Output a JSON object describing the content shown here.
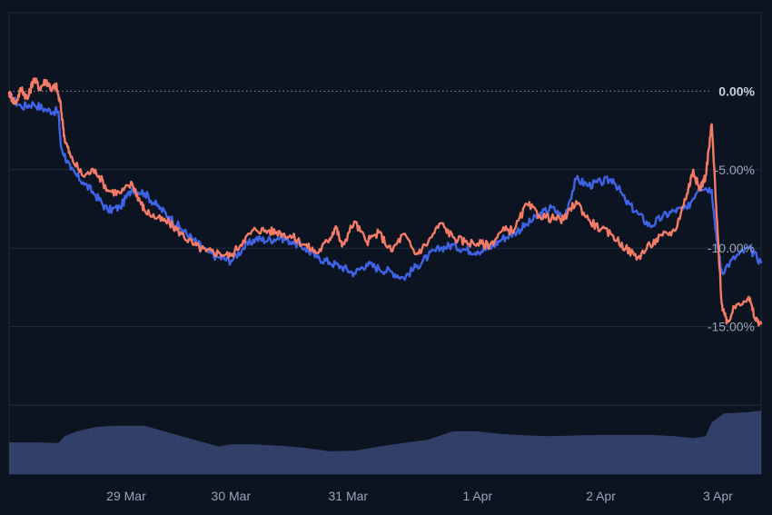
{
  "chart_data": {
    "type": "line",
    "title": "",
    "xlabel": "",
    "ylabel": "",
    "x_unit": "days",
    "xlim": [
      0,
      6.1
    ],
    "ylim": [
      -20,
      5
    ],
    "y_ticks": [
      {
        "value": 0,
        "label": "0.00%"
      },
      {
        "value": -5,
        "label": "-5.00%"
      },
      {
        "value": -10,
        "label": "-10.00%"
      },
      {
        "value": -15,
        "label": "-15.00%"
      }
    ],
    "x_ticks": [
      {
        "value": 0.95,
        "label": "29 Mar"
      },
      {
        "value": 1.8,
        "label": "30 Mar"
      },
      {
        "value": 2.75,
        "label": "31 Mar"
      },
      {
        "value": 3.8,
        "label": "1 Apr"
      },
      {
        "value": 4.8,
        "label": "2 Apr"
      },
      {
        "value": 5.75,
        "label": "3 Apr"
      }
    ],
    "baseline": 0,
    "grid": "horizontal",
    "legend": "none",
    "series": [
      {
        "color": "#3f63e6",
        "points": [
          [
            0.0,
            -0.3
          ],
          [
            0.1,
            -1.0
          ],
          [
            0.2,
            -0.8
          ],
          [
            0.3,
            -1.2
          ],
          [
            0.4,
            -1.3
          ],
          [
            0.42,
            -3.5
          ],
          [
            0.5,
            -5.0
          ],
          [
            0.6,
            -5.8
          ],
          [
            0.7,
            -6.6
          ],
          [
            0.8,
            -7.6
          ],
          [
            0.9,
            -7.4
          ],
          [
            1.0,
            -6.2
          ],
          [
            1.1,
            -6.5
          ],
          [
            1.2,
            -7.3
          ],
          [
            1.3,
            -8.0
          ],
          [
            1.4,
            -8.8
          ],
          [
            1.5,
            -9.5
          ],
          [
            1.6,
            -10.2
          ],
          [
            1.7,
            -10.6
          ],
          [
            1.8,
            -10.8
          ],
          [
            1.9,
            -10.0
          ],
          [
            2.0,
            -9.4
          ],
          [
            2.1,
            -9.5
          ],
          [
            2.2,
            -9.3
          ],
          [
            2.3,
            -9.6
          ],
          [
            2.4,
            -10.0
          ],
          [
            2.5,
            -10.6
          ],
          [
            2.6,
            -10.9
          ],
          [
            2.7,
            -11.2
          ],
          [
            2.8,
            -11.6
          ],
          [
            2.9,
            -11.0
          ],
          [
            3.0,
            -11.3
          ],
          [
            3.1,
            -11.5
          ],
          [
            3.2,
            -11.9
          ],
          [
            3.3,
            -11.2
          ],
          [
            3.4,
            -10.5
          ],
          [
            3.5,
            -10.0
          ],
          [
            3.6,
            -9.8
          ],
          [
            3.7,
            -10.1
          ],
          [
            3.8,
            -10.2
          ],
          [
            3.9,
            -10.0
          ],
          [
            4.0,
            -9.4
          ],
          [
            4.1,
            -9.0
          ],
          [
            4.2,
            -8.5
          ],
          [
            4.3,
            -7.9
          ],
          [
            4.4,
            -7.4
          ],
          [
            4.5,
            -8.1
          ],
          [
            4.6,
            -5.6
          ],
          [
            4.7,
            -6.0
          ],
          [
            4.8,
            -5.8
          ],
          [
            4.9,
            -5.6
          ],
          [
            5.0,
            -7.0
          ],
          [
            5.1,
            -7.8
          ],
          [
            5.2,
            -8.6
          ],
          [
            5.3,
            -8.0
          ],
          [
            5.4,
            -7.6
          ],
          [
            5.5,
            -7.5
          ],
          [
            5.6,
            -6.0
          ],
          [
            5.7,
            -6.3
          ],
          [
            5.74,
            -9.5
          ],
          [
            5.78,
            -11.5
          ],
          [
            5.9,
            -10.5
          ],
          [
            6.0,
            -10.0
          ],
          [
            6.1,
            -10.9
          ]
        ]
      },
      {
        "color": "#f47c67",
        "points": [
          [
            0.0,
            -0.1
          ],
          [
            0.05,
            -0.8
          ],
          [
            0.1,
            0.2
          ],
          [
            0.15,
            -0.5
          ],
          [
            0.2,
            0.8
          ],
          [
            0.25,
            0.2
          ],
          [
            0.3,
            0.7
          ],
          [
            0.35,
            0.1
          ],
          [
            0.38,
            0.4
          ],
          [
            0.42,
            -1.0
          ],
          [
            0.45,
            -3.0
          ],
          [
            0.5,
            -4.2
          ],
          [
            0.6,
            -5.4
          ],
          [
            0.7,
            -5.0
          ],
          [
            0.8,
            -6.3
          ],
          [
            0.9,
            -6.5
          ],
          [
            1.0,
            -5.9
          ],
          [
            1.05,
            -6.8
          ],
          [
            1.1,
            -7.6
          ],
          [
            1.2,
            -8.1
          ],
          [
            1.3,
            -8.4
          ],
          [
            1.4,
            -9.1
          ],
          [
            1.5,
            -9.8
          ],
          [
            1.6,
            -10.2
          ],
          [
            1.7,
            -10.3
          ],
          [
            1.8,
            -10.5
          ],
          [
            1.9,
            -9.5
          ],
          [
            2.0,
            -8.8
          ],
          [
            2.1,
            -8.9
          ],
          [
            2.2,
            -9.0
          ],
          [
            2.3,
            -9.3
          ],
          [
            2.4,
            -9.8
          ],
          [
            2.5,
            -10.3
          ],
          [
            2.6,
            -9.4
          ],
          [
            2.65,
            -8.6
          ],
          [
            2.7,
            -9.9
          ],
          [
            2.8,
            -8.3
          ],
          [
            2.9,
            -9.6
          ],
          [
            3.0,
            -9.0
          ],
          [
            3.1,
            -10.2
          ],
          [
            3.2,
            -9.1
          ],
          [
            3.3,
            -10.4
          ],
          [
            3.4,
            -9.6
          ],
          [
            3.5,
            -8.4
          ],
          [
            3.6,
            -9.3
          ],
          [
            3.7,
            -9.6
          ],
          [
            3.8,
            -9.7
          ],
          [
            3.9,
            -9.8
          ],
          [
            4.0,
            -8.9
          ],
          [
            4.1,
            -8.8
          ],
          [
            4.2,
            -7.2
          ],
          [
            4.3,
            -7.9
          ],
          [
            4.4,
            -8.1
          ],
          [
            4.5,
            -8.2
          ],
          [
            4.6,
            -7.0
          ],
          [
            4.7,
            -8.2
          ],
          [
            4.8,
            -8.8
          ],
          [
            4.9,
            -9.2
          ],
          [
            5.0,
            -10.0
          ],
          [
            5.1,
            -10.6
          ],
          [
            5.2,
            -9.8
          ],
          [
            5.3,
            -9.2
          ],
          [
            5.4,
            -8.9
          ],
          [
            5.5,
            -6.5
          ],
          [
            5.55,
            -5.0
          ],
          [
            5.6,
            -6.3
          ],
          [
            5.65,
            -5.4
          ],
          [
            5.7,
            -2.1
          ],
          [
            5.74,
            -8.0
          ],
          [
            5.78,
            -13.5
          ],
          [
            5.82,
            -14.8
          ],
          [
            5.9,
            -13.6
          ],
          [
            6.0,
            -13.1
          ],
          [
            6.05,
            -14.5
          ],
          [
            6.1,
            -14.8
          ]
        ]
      }
    ],
    "volume": {
      "color": "#3c4a7a",
      "points": [
        [
          0.0,
          0.46
        ],
        [
          0.2,
          0.46
        ],
        [
          0.4,
          0.45
        ],
        [
          0.45,
          0.55
        ],
        [
          0.55,
          0.62
        ],
        [
          0.7,
          0.68
        ],
        [
          0.85,
          0.7
        ],
        [
          1.1,
          0.7
        ],
        [
          1.2,
          0.65
        ],
        [
          1.4,
          0.55
        ],
        [
          1.6,
          0.45
        ],
        [
          1.7,
          0.4
        ],
        [
          1.8,
          0.43
        ],
        [
          2.0,
          0.43
        ],
        [
          2.2,
          0.41
        ],
        [
          2.4,
          0.38
        ],
        [
          2.6,
          0.33
        ],
        [
          2.8,
          0.34
        ],
        [
          3.0,
          0.4
        ],
        [
          3.2,
          0.45
        ],
        [
          3.4,
          0.5
        ],
        [
          3.6,
          0.62
        ],
        [
          3.8,
          0.62
        ],
        [
          4.0,
          0.58
        ],
        [
          4.2,
          0.56
        ],
        [
          4.4,
          0.55
        ],
        [
          4.6,
          0.56
        ],
        [
          4.8,
          0.57
        ],
        [
          5.0,
          0.57
        ],
        [
          5.2,
          0.57
        ],
        [
          5.4,
          0.55
        ],
        [
          5.55,
          0.52
        ],
        [
          5.65,
          0.55
        ],
        [
          5.7,
          0.75
        ],
        [
          5.8,
          0.88
        ],
        [
          6.0,
          0.9
        ],
        [
          6.1,
          0.92
        ]
      ]
    }
  }
}
